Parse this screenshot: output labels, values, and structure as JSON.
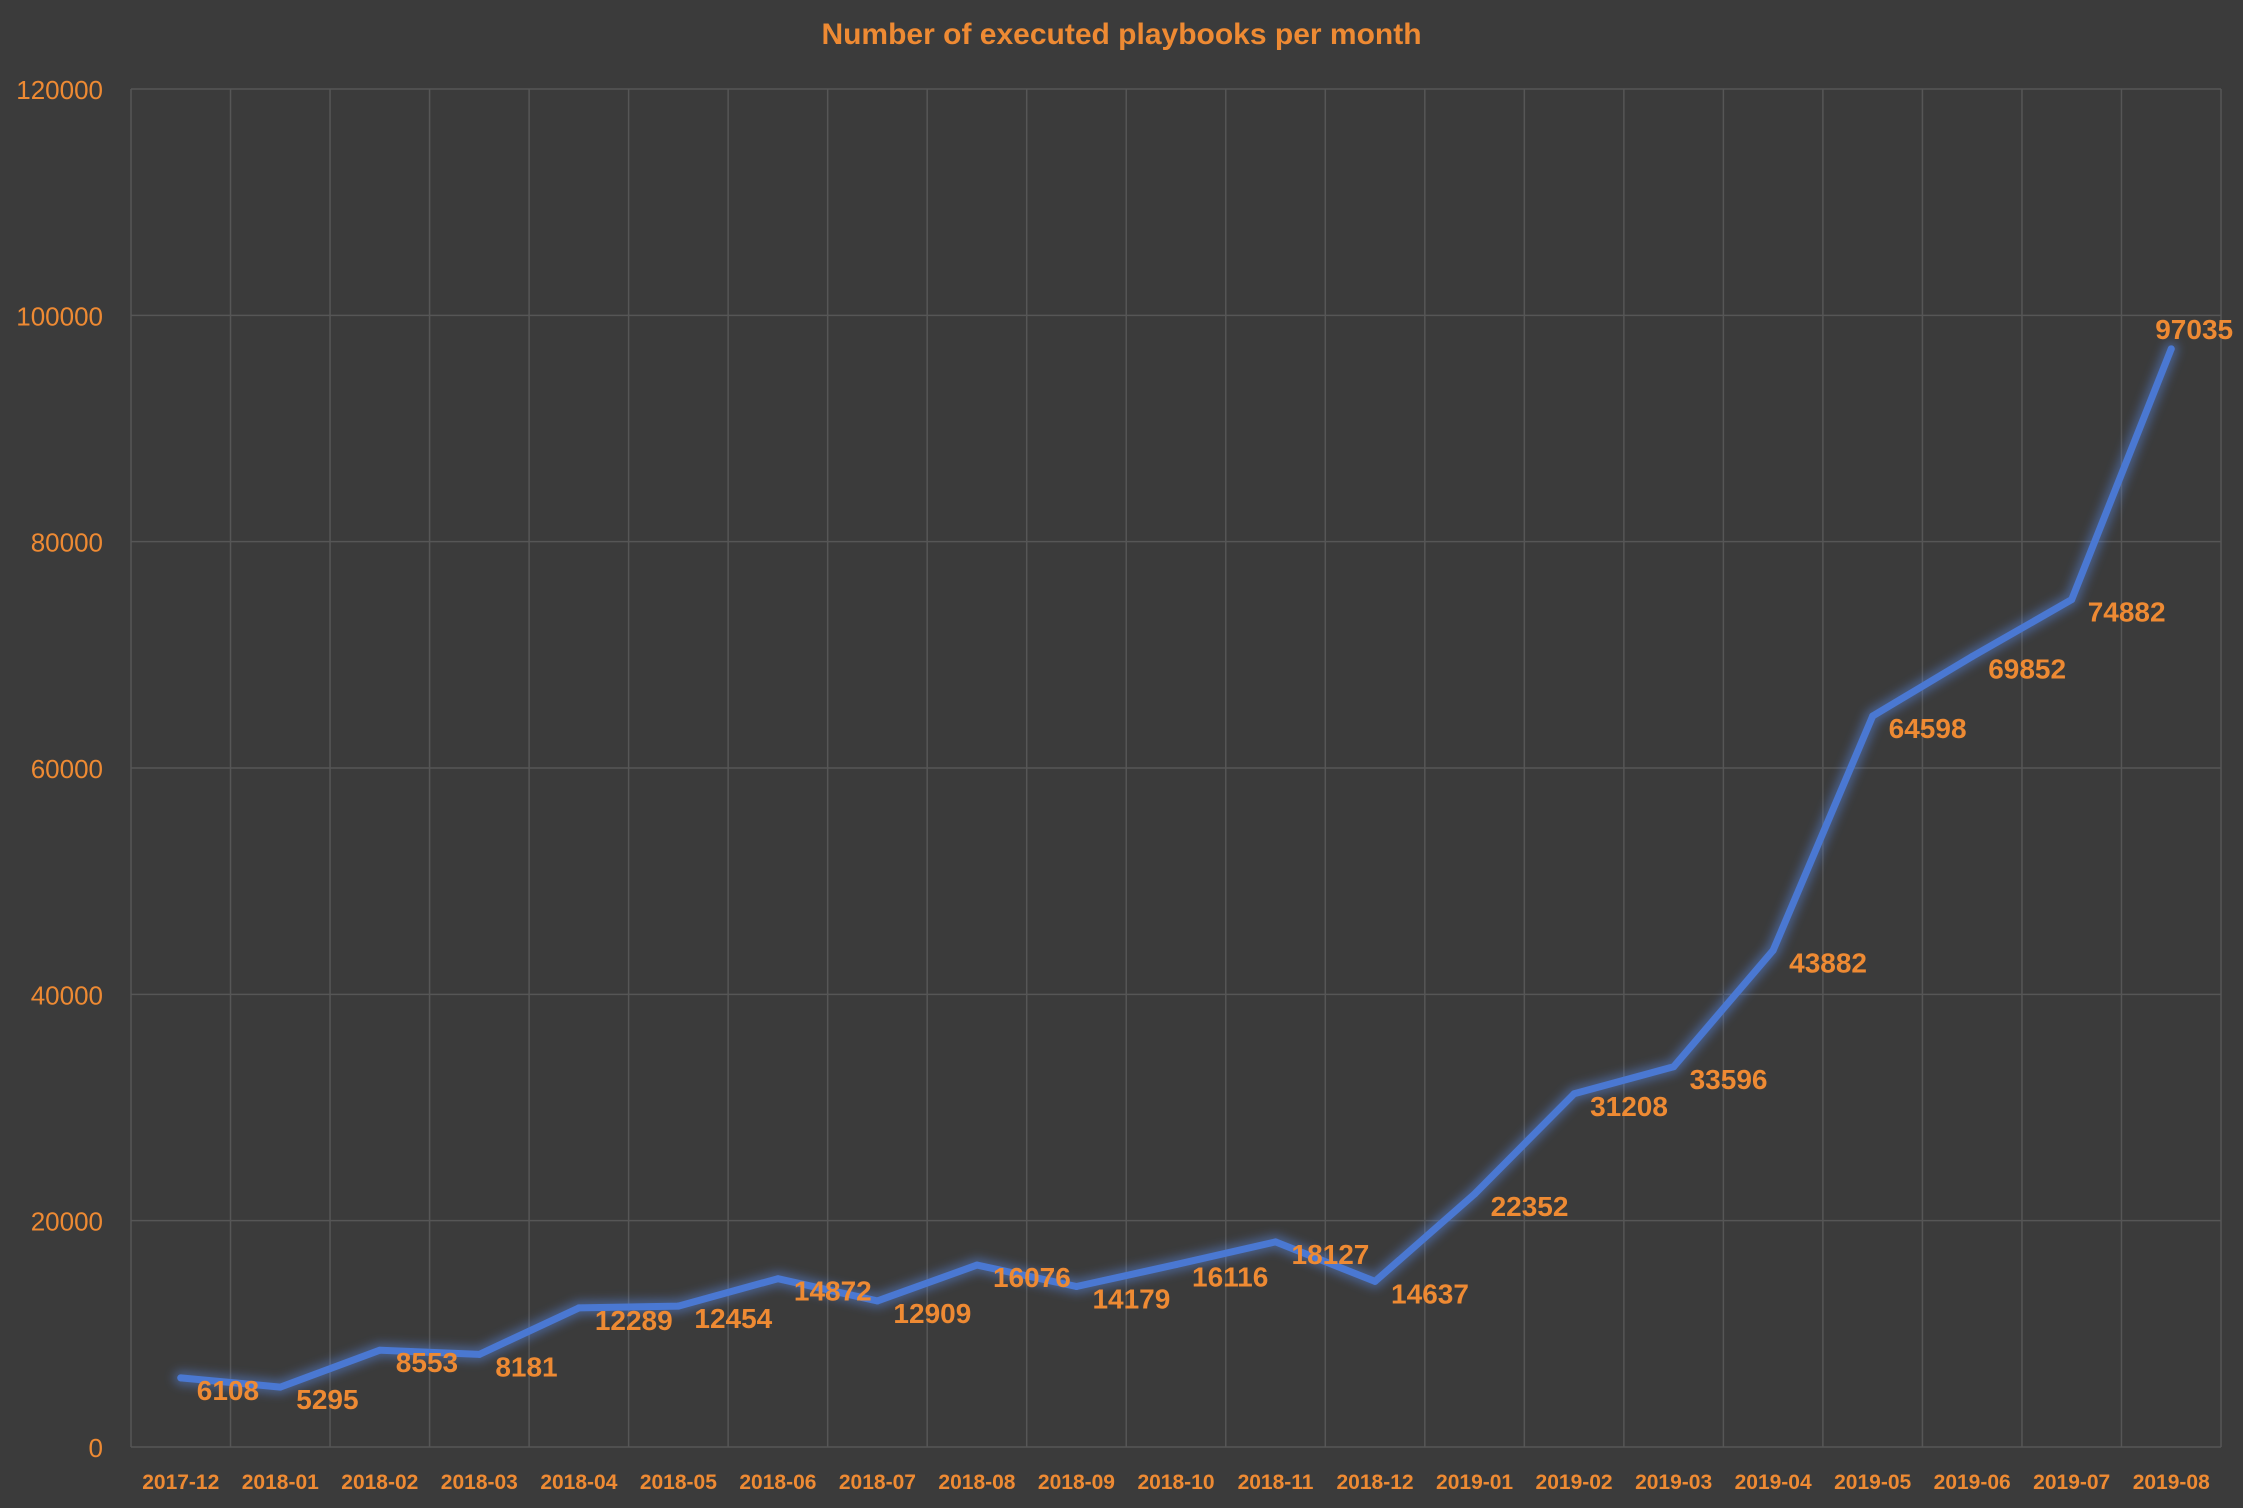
{
  "chart_data": {
    "type": "line",
    "title": "Number of executed playbooks per month",
    "xlabel": "",
    "ylabel": "",
    "categories": [
      "2017-12",
      "2018-01",
      "2018-02",
      "2018-03",
      "2018-04",
      "2018-05",
      "2018-06",
      "2018-07",
      "2018-08",
      "2018-09",
      "2018-10",
      "2018-11",
      "2018-12",
      "2019-01",
      "2019-02",
      "2019-03",
      "2019-04",
      "2019-05",
      "2019-06",
      "2019-07",
      "2019-08"
    ],
    "series": [
      {
        "values": [
          6108,
          5295,
          8553,
          8181,
          12289,
          12454,
          14872,
          12909,
          16076,
          14179,
          16116,
          18127,
          14637,
          22352,
          31208,
          33596,
          43882,
          64598,
          69852,
          74882,
          97035
        ]
      }
    ],
    "ylim": [
      0,
      120000
    ],
    "yticks": [
      "0",
      "20000",
      "40000",
      "60000",
      "80000",
      "100000",
      "120000"
    ],
    "grid": true,
    "legend": "none",
    "data_labels": true
  },
  "colors": {
    "background": "#3b3b3b",
    "plot_background": "#3b3b3b",
    "grid": "#565656",
    "text": "#ee8a33",
    "line": "#4a78d2",
    "line_glow": "#5b8ef0"
  }
}
